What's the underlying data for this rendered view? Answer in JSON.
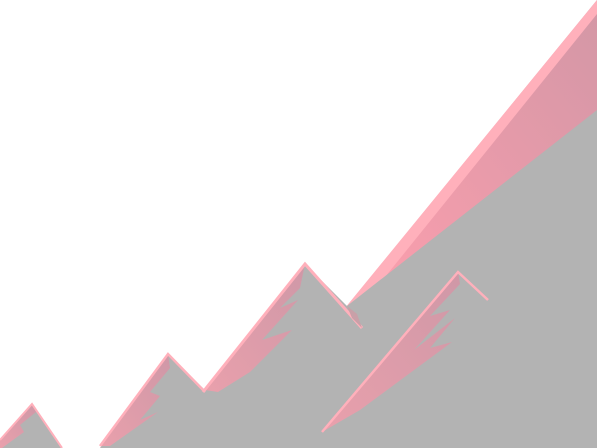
{
  "scene": {
    "name": "mountain-illustration",
    "colors": {
      "background": "#ffffff",
      "mountain_base": "#b3b3b3",
      "highlight": "#ff9fae",
      "highlight_deep": "#d397a6",
      "edge": "#ffb0bb"
    },
    "peak_count": 5
  }
}
